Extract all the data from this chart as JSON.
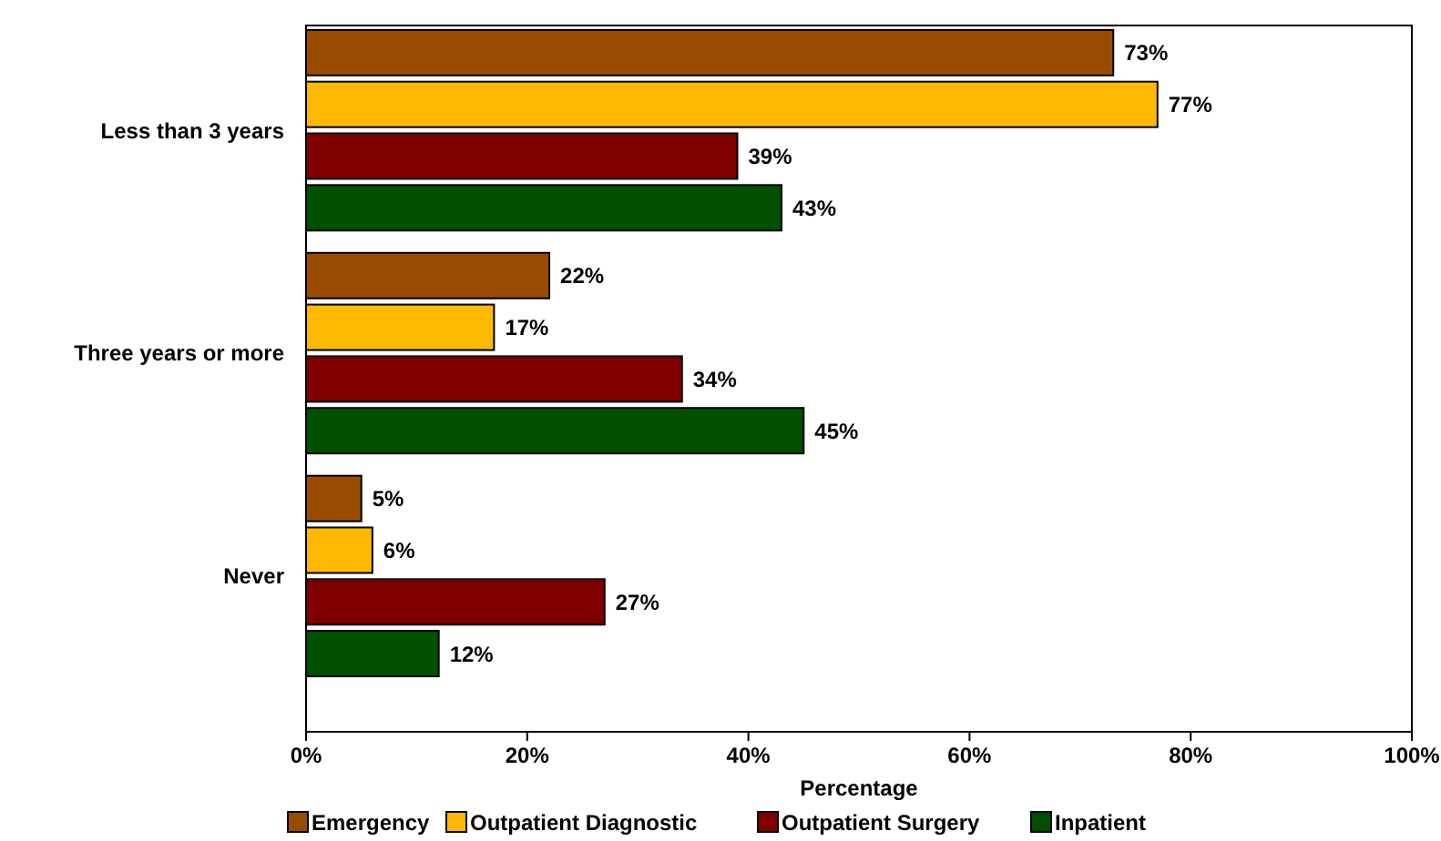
{
  "chart_data": {
    "type": "bar",
    "orientation": "horizontal",
    "xlabel": "Percentage",
    "categories": [
      "Less than 3 years",
      "Three years or more",
      "Never"
    ],
    "series": [
      {
        "name": "Emergency",
        "color": "#994c00",
        "values": [
          73,
          22,
          5
        ]
      },
      {
        "name": "Outpatient Diagnostic",
        "color": "#ffb900",
        "values": [
          77,
          17,
          6
        ]
      },
      {
        "name": "Outpatient Surgery",
        "color": "#800000",
        "values": [
          39,
          34,
          27
        ]
      },
      {
        "name": "Inpatient",
        "color": "#005000",
        "values": [
          43,
          45,
          12
        ]
      }
    ],
    "xlim": [
      0,
      100
    ],
    "xticks": [
      {
        "value": 0,
        "label": "0%"
      },
      {
        "value": 20,
        "label": "20%"
      },
      {
        "value": 40,
        "label": "40%"
      },
      {
        "value": 60,
        "label": "60%"
      },
      {
        "value": 80,
        "label": "80%"
      },
      {
        "value": 100,
        "label": "100%"
      }
    ],
    "value_labels": [
      [
        "73%",
        "22%",
        "5%"
      ],
      [
        "77%",
        "17%",
        "6%"
      ],
      [
        "39%",
        "34%",
        "27%"
      ],
      [
        "43%",
        "45%",
        "12%"
      ]
    ],
    "legend": "bottom",
    "grid": false
  }
}
